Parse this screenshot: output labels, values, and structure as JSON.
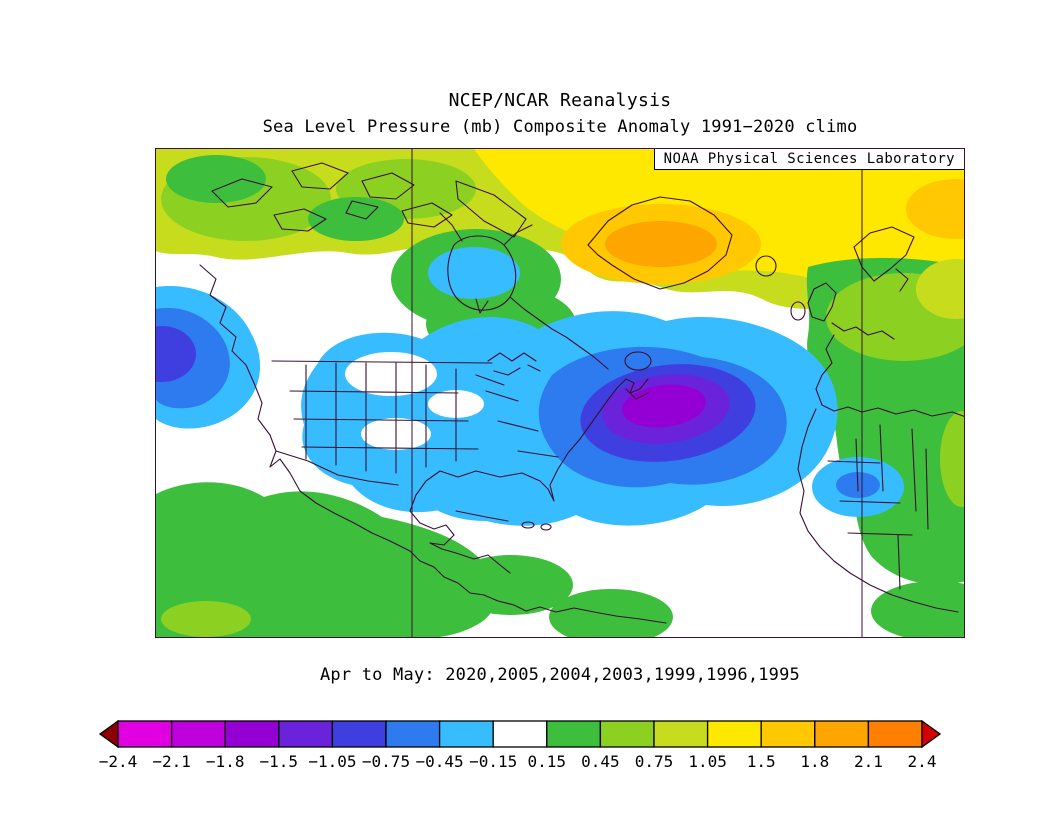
{
  "plot": {
    "title": "NCEP/NCAR Reanalysis",
    "subtitle": "Sea Level Pressure (mb) Composite Anomaly 1991−2020 climo",
    "source_label": "NOAA Physical Sciences Laboratory",
    "caption": "Apr to May: 2020,2005,2004,2003,1999,1996,1995"
  },
  "colorbar": {
    "tick_labels": [
      "−2.4",
      "−2.1",
      "−1.8",
      "−1.5",
      "−1.05",
      "−0.75",
      "−0.45",
      "−0.15",
      "0.15",
      "0.45",
      "0.75",
      "1.05",
      "1.5",
      "1.8",
      "2.1",
      "2.4"
    ],
    "cell_colors": [
      "#E100E1",
      "#BE00DC",
      "#9400D3",
      "#6A22DB",
      "#3F3FE0",
      "#2E7BF0",
      "#37BDFF",
      "#FFFFFF",
      "#3DBE3D",
      "#8CD122",
      "#C8DC1E",
      "#FFE800",
      "#FFC800",
      "#FFA500",
      "#FF7F00"
    ],
    "left_arrow_color": "#8B0000",
    "right_arrow_color": "#D40000",
    "outline_color": "#000000"
  },
  "chart_data": {
    "type": "heatmap",
    "chart_kind": "filled contour composite anomaly map",
    "title": "NCEP/NCAR Reanalysis",
    "subtitle": "Sea Level Pressure (mb) Composite Anomaly 1991−2020 climo",
    "variable": "Sea Level Pressure anomaly",
    "units": "mb",
    "climatology_period": "1991−2020",
    "composite_season": "Apr to May",
    "composite_years": [
      2020,
      2005,
      2004,
      2003,
      1999,
      1996,
      1995
    ],
    "region": "North America, North Atlantic, Greenland, Europe and North Africa",
    "source": "NOAA Physical Sciences Laboratory",
    "contour_levels_mb": [
      -2.4,
      -2.1,
      -1.8,
      -1.5,
      -1.05,
      -0.75,
      -0.45,
      -0.15,
      0.15,
      0.45,
      0.75,
      1.05,
      1.5,
      1.8,
      2.1,
      2.4
    ],
    "legend_position": "bottom",
    "grid_meridian_lines": 2,
    "features": [
      {
        "feature": "deep negative anomaly center",
        "location": "central North Atlantic",
        "approx_min_mb": -1.7
      },
      {
        "feature": "negative anomaly lobe",
        "location": "eastern United States and western Atlantic",
        "approx_value_mb": -0.5
      },
      {
        "feature": "negative anomaly center",
        "location": "northeast Pacific off the U.S. West Coast",
        "approx_min_mb": -1.0
      },
      {
        "feature": "small negative anomaly",
        "location": "northwest Africa",
        "approx_min_mb": -0.6
      },
      {
        "feature": "negative anomaly patch",
        "location": "Hudson Bay region",
        "approx_min_mb": -0.3
      },
      {
        "feature": "positive anomaly band",
        "location": "Arctic, Canadian Archipelago, Greenland and Nordic seas",
        "approx_value_mb": 1.2
      },
      {
        "feature": "positive anomaly maximum",
        "location": "southeast of Greenland / Iceland region",
        "approx_max_mb": 2.0
      },
      {
        "feature": "weak positive anomalies",
        "location": "tropics, Central America, Europe and Africa",
        "approx_value_mb": 0.4
      }
    ]
  }
}
